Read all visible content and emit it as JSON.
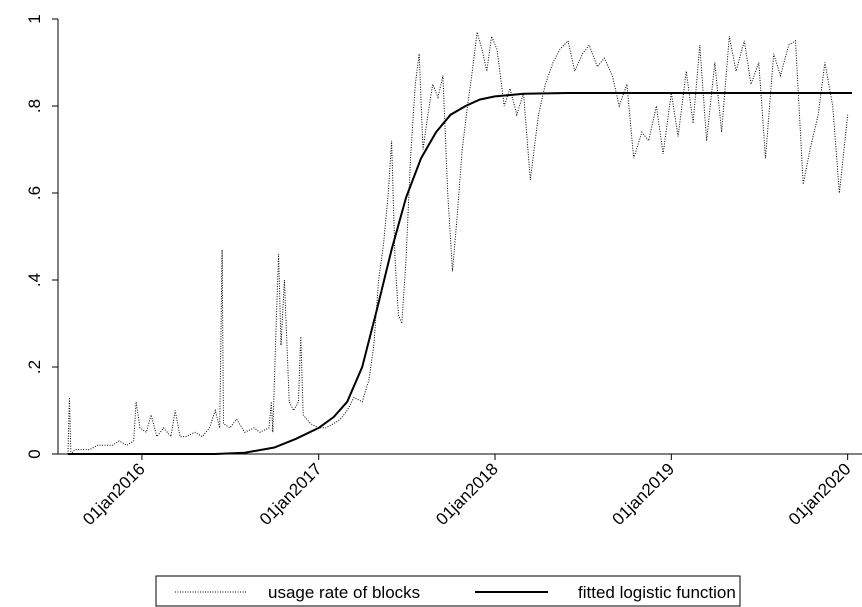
{
  "chart_data": {
    "type": "line",
    "x_axis": {
      "type": "date",
      "range": [
        "2015-08-01",
        "2020-01-10"
      ],
      "ticks": [
        "2016-01-01",
        "2017-01-01",
        "2018-01-01",
        "2019-01-01",
        "2020-01-01"
      ],
      "tick_labels": [
        "01jan2016",
        "01jan2017",
        "01jan2018",
        "01jan2019",
        "01jan2020"
      ]
    },
    "y_axis": {
      "range": [
        0,
        1
      ],
      "ticks": [
        0,
        0.2,
        0.4,
        0.6,
        0.8,
        1
      ],
      "tick_labels": [
        "0",
        ".2",
        ".4",
        ".6",
        ".8",
        "1"
      ]
    },
    "grid": false,
    "legend": {
      "placement": "bottom",
      "entries": [
        "usage rate of blocks",
        "fitted logistic function"
      ]
    },
    "series": [
      {
        "name": "usage rate of blocks",
        "style": "dotted",
        "color": "#000000",
        "points": [
          [
            "2015-08-01",
            0.0
          ],
          [
            "2015-08-04",
            0.13
          ],
          [
            "2015-08-07",
            0.0
          ],
          [
            "2015-08-15",
            0.01
          ],
          [
            "2015-09-01",
            0.01
          ],
          [
            "2015-09-15",
            0.01
          ],
          [
            "2015-10-01",
            0.02
          ],
          [
            "2015-10-15",
            0.02
          ],
          [
            "2015-11-01",
            0.02
          ],
          [
            "2015-11-15",
            0.03
          ],
          [
            "2015-12-01",
            0.02
          ],
          [
            "2015-12-15",
            0.03
          ],
          [
            "2015-12-20",
            0.12
          ],
          [
            "2015-12-28",
            0.06
          ],
          [
            "2016-01-10",
            0.05
          ],
          [
            "2016-01-20",
            0.09
          ],
          [
            "2016-02-01",
            0.04
          ],
          [
            "2016-02-15",
            0.06
          ],
          [
            "2016-03-01",
            0.04
          ],
          [
            "2016-03-10",
            0.1
          ],
          [
            "2016-03-20",
            0.04
          ],
          [
            "2016-04-01",
            0.04
          ],
          [
            "2016-04-20",
            0.05
          ],
          [
            "2016-05-05",
            0.04
          ],
          [
            "2016-05-20",
            0.06
          ],
          [
            "2016-06-01",
            0.1
          ],
          [
            "2016-06-10",
            0.06
          ],
          [
            "2016-06-15",
            0.47
          ],
          [
            "2016-06-18",
            0.07
          ],
          [
            "2016-07-01",
            0.06
          ],
          [
            "2016-07-15",
            0.08
          ],
          [
            "2016-08-01",
            0.05
          ],
          [
            "2016-08-20",
            0.06
          ],
          [
            "2016-09-01",
            0.05
          ],
          [
            "2016-09-20",
            0.06
          ],
          [
            "2016-09-25",
            0.12
          ],
          [
            "2016-09-28",
            0.05
          ],
          [
            "2016-10-05",
            0.3
          ],
          [
            "2016-10-10",
            0.46
          ],
          [
            "2016-10-15",
            0.25
          ],
          [
            "2016-10-22",
            0.4
          ],
          [
            "2016-11-01",
            0.12
          ],
          [
            "2016-11-10",
            0.1
          ],
          [
            "2016-11-20",
            0.12
          ],
          [
            "2016-11-25",
            0.27
          ],
          [
            "2016-11-30",
            0.09
          ],
          [
            "2016-12-15",
            0.07
          ],
          [
            "2017-01-01",
            0.06
          ],
          [
            "2017-01-15",
            0.06
          ],
          [
            "2017-02-01",
            0.07
          ],
          [
            "2017-02-15",
            0.08
          ],
          [
            "2017-03-01",
            0.1
          ],
          [
            "2017-03-15",
            0.13
          ],
          [
            "2017-04-01",
            0.12
          ],
          [
            "2017-04-15",
            0.17
          ],
          [
            "2017-04-25",
            0.25
          ],
          [
            "2017-05-05",
            0.4
          ],
          [
            "2017-05-15",
            0.48
          ],
          [
            "2017-05-25",
            0.6
          ],
          [
            "2017-06-01",
            0.72
          ],
          [
            "2017-06-08",
            0.45
          ],
          [
            "2017-06-15",
            0.32
          ],
          [
            "2017-06-22",
            0.3
          ],
          [
            "2017-07-01",
            0.45
          ],
          [
            "2017-07-10",
            0.68
          ],
          [
            "2017-07-20",
            0.85
          ],
          [
            "2017-07-28",
            0.92
          ],
          [
            "2017-08-05",
            0.7
          ],
          [
            "2017-08-15",
            0.78
          ],
          [
            "2017-08-25",
            0.85
          ],
          [
            "2017-09-05",
            0.82
          ],
          [
            "2017-09-15",
            0.87
          ],
          [
            "2017-09-25",
            0.6
          ],
          [
            "2017-10-05",
            0.42
          ],
          [
            "2017-10-15",
            0.55
          ],
          [
            "2017-10-25",
            0.7
          ],
          [
            "2017-11-05",
            0.8
          ],
          [
            "2017-11-15",
            0.88
          ],
          [
            "2017-11-25",
            0.97
          ],
          [
            "2017-12-05",
            0.93
          ],
          [
            "2017-12-15",
            0.88
          ],
          [
            "2017-12-25",
            0.96
          ],
          [
            "2018-01-05",
            0.93
          ],
          [
            "2018-01-20",
            0.8
          ],
          [
            "2018-02-01",
            0.84
          ],
          [
            "2018-02-15",
            0.78
          ],
          [
            "2018-03-01",
            0.83
          ],
          [
            "2018-03-15",
            0.63
          ],
          [
            "2018-04-01",
            0.78
          ],
          [
            "2018-04-15",
            0.85
          ],
          [
            "2018-05-01",
            0.9
          ],
          [
            "2018-05-15",
            0.93
          ],
          [
            "2018-06-01",
            0.95
          ],
          [
            "2018-06-15",
            0.88
          ],
          [
            "2018-07-01",
            0.92
          ],
          [
            "2018-07-15",
            0.94
          ],
          [
            "2018-08-01",
            0.89
          ],
          [
            "2018-08-15",
            0.91
          ],
          [
            "2018-09-01",
            0.87
          ],
          [
            "2018-09-15",
            0.8
          ],
          [
            "2018-10-01",
            0.85
          ],
          [
            "2018-10-15",
            0.68
          ],
          [
            "2018-11-01",
            0.74
          ],
          [
            "2018-11-15",
            0.72
          ],
          [
            "2018-12-01",
            0.8
          ],
          [
            "2018-12-15",
            0.69
          ],
          [
            "2019-01-01",
            0.83
          ],
          [
            "2019-01-15",
            0.73
          ],
          [
            "2019-02-01",
            0.88
          ],
          [
            "2019-02-15",
            0.76
          ],
          [
            "2019-03-01",
            0.94
          ],
          [
            "2019-03-15",
            0.72
          ],
          [
            "2019-04-01",
            0.9
          ],
          [
            "2019-04-15",
            0.74
          ],
          [
            "2019-05-01",
            0.96
          ],
          [
            "2019-05-15",
            0.88
          ],
          [
            "2019-06-01",
            0.95
          ],
          [
            "2019-06-15",
            0.85
          ],
          [
            "2019-07-01",
            0.9
          ],
          [
            "2019-07-15",
            0.68
          ],
          [
            "2019-08-01",
            0.92
          ],
          [
            "2019-08-15",
            0.87
          ],
          [
            "2019-09-01",
            0.94
          ],
          [
            "2019-09-15",
            0.95
          ],
          [
            "2019-10-01",
            0.62
          ],
          [
            "2019-10-15",
            0.7
          ],
          [
            "2019-11-01",
            0.78
          ],
          [
            "2019-11-15",
            0.9
          ],
          [
            "2019-12-01",
            0.8
          ],
          [
            "2019-12-15",
            0.6
          ],
          [
            "2020-01-01",
            0.78
          ]
        ]
      },
      {
        "name": "fitted logistic function",
        "style": "solid",
        "color": "#000000",
        "points": [
          [
            "2015-08-01",
            0.0
          ],
          [
            "2016-01-01",
            0.0
          ],
          [
            "2016-06-01",
            0.0
          ],
          [
            "2016-08-01",
            0.003
          ],
          [
            "2016-10-01",
            0.015
          ],
          [
            "2016-11-15",
            0.035
          ],
          [
            "2017-01-01",
            0.06
          ],
          [
            "2017-02-01",
            0.085
          ],
          [
            "2017-03-01",
            0.12
          ],
          [
            "2017-04-01",
            0.2
          ],
          [
            "2017-05-01",
            0.33
          ],
          [
            "2017-06-01",
            0.47
          ],
          [
            "2017-07-01",
            0.59
          ],
          [
            "2017-08-01",
            0.68
          ],
          [
            "2017-09-01",
            0.74
          ],
          [
            "2017-10-01",
            0.78
          ],
          [
            "2017-11-01",
            0.8
          ],
          [
            "2017-12-01",
            0.815
          ],
          [
            "2018-01-01",
            0.822
          ],
          [
            "2018-03-01",
            0.828
          ],
          [
            "2018-06-01",
            0.83
          ],
          [
            "2020-01-10",
            0.83
          ]
        ]
      }
    ]
  }
}
